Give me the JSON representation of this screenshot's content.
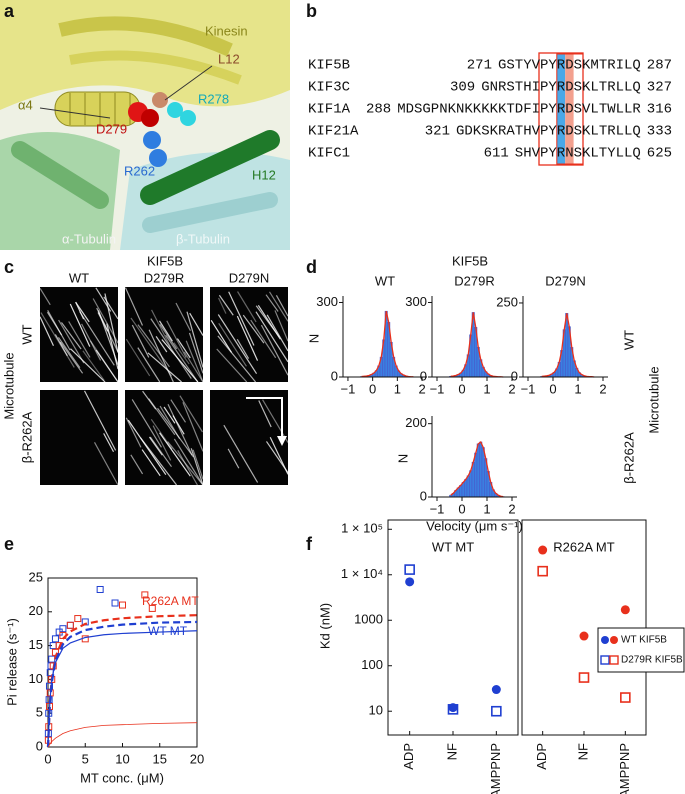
{
  "panel_labels": [
    "a",
    "b",
    "c",
    "d",
    "e",
    "f"
  ],
  "panel_a": {
    "labels": [
      "Kinesin",
      "L12",
      "α4",
      "R278",
      "D279",
      "R262",
      "H12",
      "α-Tubulin",
      "β-Tubulin"
    ]
  },
  "panel_b": {
    "rows": [
      {
        "name": "KIF5B",
        "start": 271,
        "sequence": "GSTYVPYRDSKMTRILQ",
        "end": 287
      },
      {
        "name": "KIF3C",
        "start": 309,
        "sequence": "GNRSTHIPYRDSKLTRLLQ",
        "end": 327
      },
      {
        "name": "KIF1A",
        "start": 288,
        "sequence": "MDSGPNKNKKKKKTDFIPYRDSVLTWLLR",
        "end": 316
      },
      {
        "name": "KIF21A",
        "start": 321,
        "sequence": "GDKSKRATHVPYRDSKLTRLLQ",
        "end": 333
      },
      {
        "name": "KIFC1",
        "start": 611,
        "sequence": "SHVPYRNSKLTYLLQ",
        "end": 625
      }
    ]
  },
  "panel_c": {
    "title": "KIF5B",
    "columns": [
      "WT",
      "D279R",
      "D279N"
    ],
    "row_labels": [
      "WT",
      "β-R262A"
    ],
    "group_label": "Microtubule"
  },
  "panel_d": {
    "title": "KIF5B",
    "row_labels": [
      "WT",
      "β-R262A"
    ],
    "group_label": "Microtubule"
  },
  "chart_data": [
    {
      "type": "histogram",
      "title": "WT",
      "y_label": "N",
      "color": "#3a7fe0",
      "bins": [
        -0.5,
        -0.4,
        -0.3,
        -0.2,
        -0.1,
        0,
        0.1,
        0.2,
        0.3,
        0.4,
        0.5,
        0.6,
        0.7,
        0.8,
        0.9,
        1,
        1.1,
        1.2,
        1.3,
        1.4,
        1.5,
        1.6,
        1.7
      ],
      "values": [
        2,
        3,
        4,
        6,
        10,
        16,
        26,
        45,
        80,
        150,
        265,
        220,
        140,
        80,
        45,
        25,
        14,
        8,
        4,
        2,
        1,
        1
      ],
      "xlim": [
        -1.2,
        2.2
      ],
      "xticks": [
        {
          "value": -1,
          "label": "−1"
        },
        0,
        1,
        2
      ],
      "ylim": [
        0,
        310
      ],
      "yticks": [
        0,
        300
      ]
    },
    {
      "type": "histogram",
      "title": "D279R",
      "color": "#3a7fe0",
      "bins": [
        -0.5,
        -0.4,
        -0.3,
        -0.2,
        -0.1,
        0,
        0.1,
        0.2,
        0.3,
        0.4,
        0.5,
        0.6,
        0.7,
        0.8,
        0.9,
        1,
        1.1,
        1.2,
        1.3,
        1.4,
        1.5,
        1.6,
        1.7
      ],
      "values": [
        3,
        4,
        6,
        10,
        16,
        28,
        50,
        90,
        170,
        260,
        200,
        120,
        70,
        40,
        22,
        12,
        6,
        3,
        2,
        1,
        1,
        0
      ],
      "xlim": [
        -1.2,
        2.2
      ],
      "xticks": [
        {
          "value": -1,
          "label": "−1"
        },
        0,
        1,
        2
      ],
      "ylim": [
        0,
        310
      ],
      "yticks": [
        0,
        300
      ]
    },
    {
      "type": "histogram",
      "title": "D279N",
      "color": "#3a7fe0",
      "bins": [
        -0.5,
        -0.4,
        -0.3,
        -0.2,
        -0.1,
        0,
        0.1,
        0.2,
        0.3,
        0.4,
        0.5,
        0.6,
        0.7,
        0.8,
        0.9,
        1,
        1.1,
        1.2,
        1.3,
        1.4,
        1.5,
        1.6,
        1.7
      ],
      "values": [
        2,
        3,
        4,
        6,
        10,
        16,
        28,
        50,
        90,
        160,
        215,
        170,
        100,
        55,
        30,
        15,
        8,
        4,
        2,
        1,
        1,
        0
      ],
      "xlim": [
        -1.2,
        2.2
      ],
      "xticks": [
        {
          "value": -1,
          "label": "−1"
        },
        0,
        1,
        2
      ],
      "ylim": [
        0,
        260
      ],
      "yticks": [
        0,
        250
      ]
    },
    {
      "type": "histogram",
      "y_label": "N",
      "x_label": "Velocity (μm s⁻¹)",
      "color": "#3a7fe0",
      "bins": [
        -0.5,
        -0.4,
        -0.3,
        -0.2,
        -0.1,
        0,
        0.1,
        0.2,
        0.3,
        0.4,
        0.5,
        0.6,
        0.7,
        0.8,
        0.9,
        1,
        1.1,
        1.2,
        1.3,
        1.4,
        1.5,
        1.6,
        1.7
      ],
      "values": [
        5,
        10,
        18,
        25,
        32,
        40,
        48,
        58,
        72,
        95,
        120,
        145,
        150,
        135,
        105,
        70,
        40,
        20,
        10,
        5,
        2,
        1
      ],
      "xlim": [
        -1.2,
        2.2
      ],
      "xticks": [
        {
          "value": -1,
          "label": "−1"
        },
        0,
        1,
        2
      ],
      "ylim": [
        0,
        210
      ],
      "yticks": [
        0,
        200
      ]
    },
    {
      "type": "scatter",
      "x_label": "MT conc. (μM)",
      "y_label": "Pi release (s⁻¹)",
      "xlim": [
        0,
        20
      ],
      "xticks": [
        0,
        5,
        10,
        15,
        20
      ],
      "ylim": [
        0,
        25
      ],
      "yticks": [
        0,
        5,
        10,
        15,
        20,
        25
      ],
      "annotations": [
        {
          "text": "R262A MT",
          "color": "#e8301c"
        },
        {
          "text": "WT MT",
          "color": "#1f3fd1"
        }
      ],
      "series": [
        {
          "color": "#1f3fd1",
          "marker": "square",
          "x": [
            0.05,
            0.1,
            0.15,
            0.2,
            0.3,
            0.4,
            0.5,
            0.7,
            1,
            1.5,
            2,
            3,
            5,
            7,
            9
          ],
          "values": [
            2,
            5,
            7,
            9,
            11,
            12,
            13,
            15,
            16,
            17,
            17.5,
            18,
            18.5,
            23.3,
            21.3
          ]
        },
        {
          "color": "#e8301c",
          "marker": "square",
          "x": [
            0.05,
            0.1,
            0.2,
            0.3,
            0.5,
            0.7,
            1,
            1.5,
            2,
            3,
            4,
            5,
            10,
            13,
            14
          ],
          "values": [
            1,
            3,
            6,
            8,
            10,
            12,
            14,
            15,
            16.5,
            18,
            19,
            16,
            21,
            22.5,
            20.5
          ]
        },
        {
          "color": "#e8301c",
          "style": "dashed",
          "x": [
            0,
            0.25,
            0.5,
            1,
            2,
            3,
            5,
            7.5,
            10,
            15,
            20
          ],
          "values": [
            0,
            6.7,
            10,
            13.3,
            16,
            17.1,
            18.2,
            18.75,
            19.05,
            19.35,
            19.5
          ]
        },
        {
          "color": "#1f3fd1",
          "style": "dashed",
          "x": [
            0,
            0.25,
            0.5,
            1,
            2,
            3,
            5,
            7.5,
            10,
            15,
            20
          ],
          "values": [
            0,
            6.3,
            9.5,
            12.7,
            15.2,
            16.3,
            17.3,
            17.8,
            18.1,
            18.4,
            18.5
          ]
        },
        {
          "color": "#1f3fd1",
          "style": "solid",
          "x": [
            0,
            0.25,
            0.5,
            1,
            2,
            3,
            5,
            7.5,
            10,
            15,
            20
          ],
          "values": [
            0,
            6.7,
            10,
            12.5,
            14.6,
            15.4,
            16.2,
            16.6,
            16.8,
            17,
            17.2
          ]
        },
        {
          "color": "#e8301c",
          "style": "thin",
          "x": [
            0,
            0.25,
            0.5,
            1,
            2,
            3,
            5,
            7.5,
            10,
            15,
            20
          ],
          "values": [
            0,
            0.4,
            0.8,
            1.3,
            2,
            2.4,
            2.9,
            3.2,
            3.3,
            3.5,
            3.6
          ]
        }
      ]
    },
    {
      "type": "dot",
      "title": "WT MT",
      "y_label": "Kd (nM)",
      "categories": [
        "ADP",
        "NF",
        "AMPPNP"
      ],
      "log_y": true,
      "ylim": [
        3,
        160000
      ],
      "yticks": [
        {
          "value": 100000,
          "label": "1 × 10⁵"
        },
        {
          "value": 10000,
          "label": "1 × 10⁴"
        },
        1000,
        100,
        10
      ],
      "series": [
        {
          "name": "WT KIF5B",
          "color": "#1f3fd1",
          "marker": "circle",
          "values": [
            7000,
            12,
            30
          ]
        },
        {
          "name": "D279R KIF5B",
          "color": "#1f3fd1",
          "marker": "square",
          "values": [
            13000,
            11,
            10
          ]
        }
      ]
    },
    {
      "type": "dot",
      "title": "R262A MT",
      "categories": [
        "ADP",
        "NF",
        "AMPPNP"
      ],
      "log_y": true,
      "ylim": [
        3,
        160000
      ],
      "legend": "right",
      "series": [
        {
          "name": "WT KIF5B",
          "color": "#e8301c",
          "marker": "circle",
          "values": [
            35000,
            450,
            1700
          ]
        },
        {
          "name": "D279R KIF5B",
          "color": "#e8301c",
          "marker": "square",
          "values": [
            12000,
            55,
            20
          ]
        }
      ]
    }
  ]
}
